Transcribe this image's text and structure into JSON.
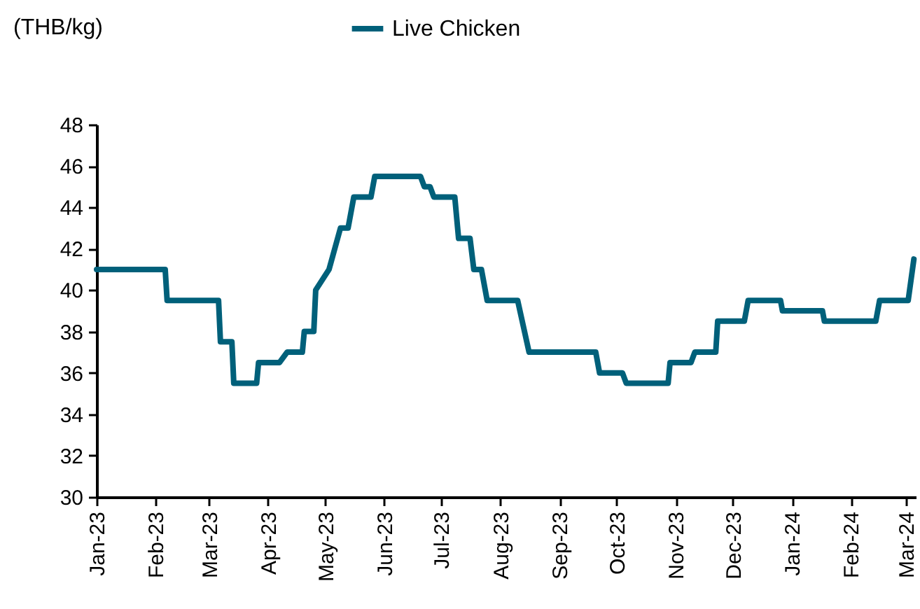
{
  "chart_data": {
    "type": "line",
    "ylabel": "(THB/kg)",
    "legend": "top",
    "x": [
      "2023-01-01",
      "2023-02-06",
      "2023-02-07",
      "2023-03-06",
      "2023-03-07",
      "2023-03-13",
      "2023-03-14",
      "2023-03-26",
      "2023-03-27",
      "2023-04-07",
      "2023-04-11",
      "2023-04-19",
      "2023-04-20",
      "2023-04-25",
      "2023-04-26",
      "2023-05-03",
      "2023-05-09",
      "2023-05-13",
      "2023-05-16",
      "2023-05-25",
      "2023-05-27",
      "2023-06-20",
      "2023-06-22",
      "2023-06-25",
      "2023-06-27",
      "2023-07-08",
      "2023-07-10",
      "2023-07-16",
      "2023-07-18",
      "2023-07-22",
      "2023-07-25",
      "2023-08-10",
      "2023-08-16",
      "2023-09-20",
      "2023-09-22",
      "2023-10-04",
      "2023-10-06",
      "2023-10-28",
      "2023-10-29",
      "2023-11-09",
      "2023-11-11",
      "2023-11-22",
      "2023-11-23",
      "2023-12-07",
      "2023-12-09",
      "2023-12-26",
      "2023-12-27",
      "2024-01-17",
      "2024-01-18",
      "2024-02-14",
      "2024-02-16",
      "2024-03-02",
      "2024-03-05"
    ],
    "series": [
      {
        "name": "Live Chicken",
        "color": "#00607a",
        "values": [
          41,
          41,
          39.5,
          39.5,
          37.5,
          37.5,
          35.5,
          35.5,
          36.5,
          36.5,
          37,
          37,
          38,
          38,
          40,
          41,
          43,
          43,
          44.5,
          44.5,
          45.5,
          45.5,
          45,
          45,
          44.5,
          44.5,
          42.5,
          42.5,
          41,
          41,
          39.5,
          39.5,
          37,
          37,
          36,
          36,
          35.5,
          35.5,
          36.5,
          36.5,
          37,
          37,
          38.5,
          38.5,
          39.5,
          39.5,
          39,
          39,
          38.5,
          38.5,
          39.5,
          39.5,
          41.5
        ]
      }
    ],
    "xlim": [
      "2023-01-01",
      "2024-03-06"
    ],
    "xticks": [
      {
        "value": "2023-01-01",
        "label": "Jan-23"
      },
      {
        "value": "2023-02-01",
        "label": "Feb-23"
      },
      {
        "value": "2023-03-01",
        "label": "Mar-23"
      },
      {
        "value": "2023-04-01",
        "label": "Apr-23"
      },
      {
        "value": "2023-05-01",
        "label": "May-23"
      },
      {
        "value": "2023-06-01",
        "label": "Jun-23"
      },
      {
        "value": "2023-07-01",
        "label": "Jul-23"
      },
      {
        "value": "2023-08-01",
        "label": "Aug-23"
      },
      {
        "value": "2023-09-01",
        "label": "Sep-23"
      },
      {
        "value": "2023-10-01",
        "label": "Oct-23"
      },
      {
        "value": "2023-11-01",
        "label": "Nov-23"
      },
      {
        "value": "2023-12-01",
        "label": "Dec-23"
      },
      {
        "value": "2024-01-01",
        "label": "Jan-24"
      },
      {
        "value": "2024-02-01",
        "label": "Feb-24"
      },
      {
        "value": "2024-03-01",
        "label": "Mar-24"
      }
    ],
    "ylim": [
      30,
      48
    ],
    "yticks": [
      30,
      32,
      34,
      36,
      38,
      40,
      42,
      44,
      46,
      48
    ]
  }
}
